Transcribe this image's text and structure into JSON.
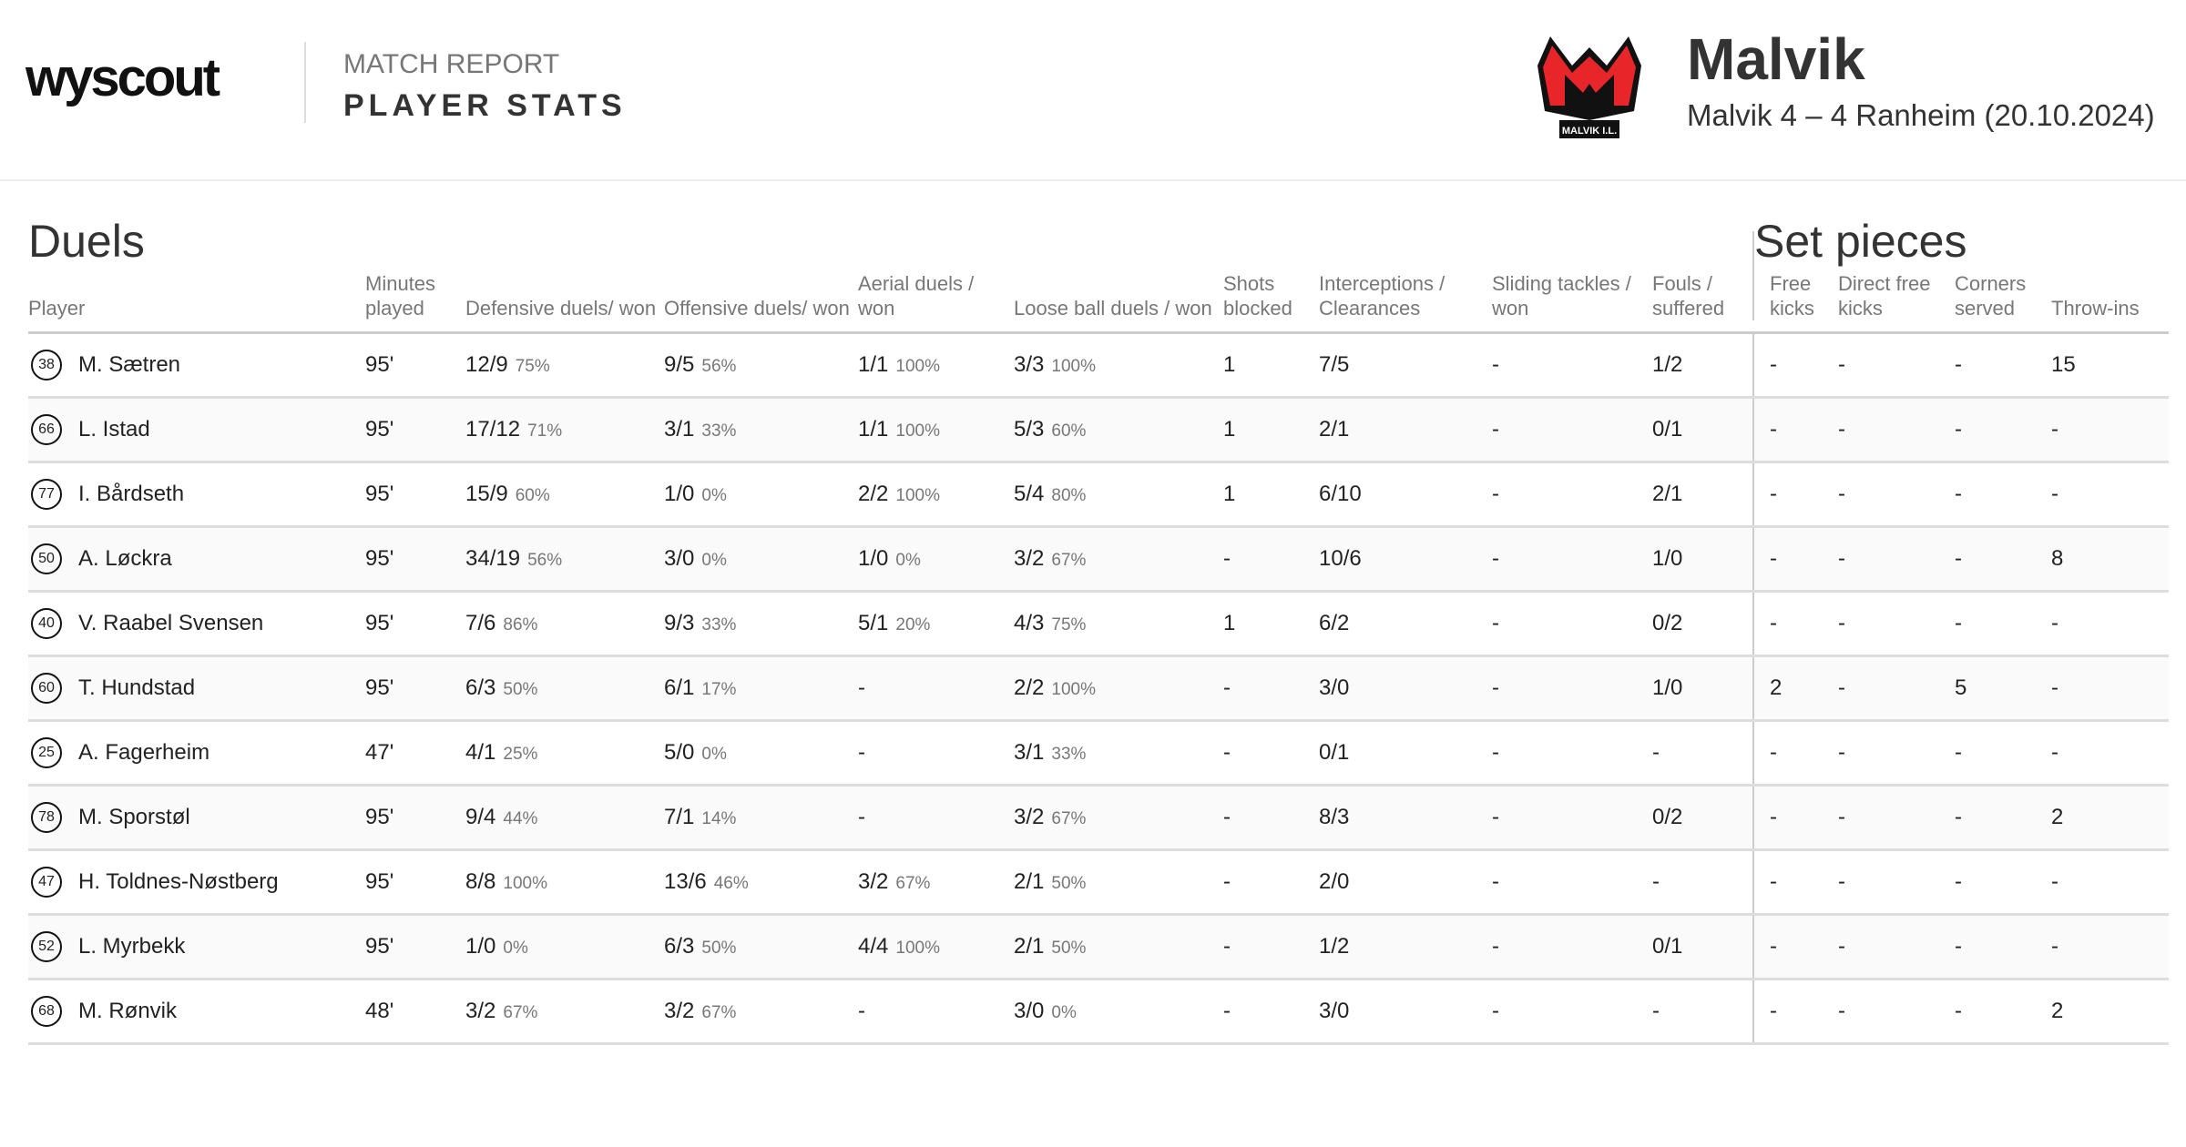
{
  "header": {
    "brand": "wyscout",
    "report_label": "MATCH REPORT",
    "report_title": "PLAYER STATS",
    "team": "Malvik",
    "match": "Malvik 4 – 4 Ranheim (20.10.2024)",
    "logo_text": "MALVIK I.L."
  },
  "sections": {
    "duels": "Duels",
    "set_pieces": "Set pieces"
  },
  "columns": [
    "Player",
    "Minutes played",
    "Defensive duels/ won",
    "Offensive duels/ won",
    "Aerial duels / won",
    "Loose ball duels / won",
    "Shots blocked",
    "Interceptions / Clearances",
    "Sliding tackles / won",
    "Fouls / suffered",
    "Free kicks",
    "Direct free kicks",
    "Corners served",
    "Throw-ins"
  ],
  "colors": {
    "accent": "#e8262a",
    "row_alt": "#fafafa"
  },
  "rows": [
    {
      "num": "38",
      "name": "M. Sætren",
      "min": "95'",
      "def": [
        "12/9",
        "75%"
      ],
      "off": [
        "9/5",
        "56%"
      ],
      "aer": [
        "1/1",
        "100%"
      ],
      "loose": [
        "3/3",
        "100%"
      ],
      "shots": "1",
      "int": "7/5",
      "slid": "-",
      "fouls": "1/2",
      "fk": "-",
      "dfk": "-",
      "corn": "-",
      "thr": "15"
    },
    {
      "num": "66",
      "name": "L. Istad",
      "min": "95'",
      "def": [
        "17/12",
        "71%"
      ],
      "off": [
        "3/1",
        "33%"
      ],
      "aer": [
        "1/1",
        "100%"
      ],
      "loose": [
        "5/3",
        "60%"
      ],
      "shots": "1",
      "int": "2/1",
      "slid": "-",
      "fouls": "0/1",
      "fk": "-",
      "dfk": "-",
      "corn": "-",
      "thr": "-"
    },
    {
      "num": "77",
      "name": "I. Bårdseth",
      "min": "95'",
      "def": [
        "15/9",
        "60%"
      ],
      "off": [
        "1/0",
        "0%"
      ],
      "aer": [
        "2/2",
        "100%"
      ],
      "loose": [
        "5/4",
        "80%"
      ],
      "shots": "1",
      "int": "6/10",
      "slid": "-",
      "fouls": "2/1",
      "fk": "-",
      "dfk": "-",
      "corn": "-",
      "thr": "-"
    },
    {
      "num": "50",
      "name": "A. Løckra",
      "min": "95'",
      "def": [
        "34/19",
        "56%"
      ],
      "off": [
        "3/0",
        "0%"
      ],
      "aer": [
        "1/0",
        "0%"
      ],
      "loose": [
        "3/2",
        "67%"
      ],
      "shots": "-",
      "int": "10/6",
      "slid": "-",
      "fouls": "1/0",
      "fk": "-",
      "dfk": "-",
      "corn": "-",
      "thr": "8"
    },
    {
      "num": "40",
      "name": "V. Raabel Svensen",
      "min": "95'",
      "def": [
        "7/6",
        "86%"
      ],
      "off": [
        "9/3",
        "33%"
      ],
      "aer": [
        "5/1",
        "20%"
      ],
      "loose": [
        "4/3",
        "75%"
      ],
      "shots": "1",
      "int": "6/2",
      "slid": "-",
      "fouls": "0/2",
      "fk": "-",
      "dfk": "-",
      "corn": "-",
      "thr": "-"
    },
    {
      "num": "60",
      "name": "T. Hundstad",
      "min": "95'",
      "def": [
        "6/3",
        "50%"
      ],
      "off": [
        "6/1",
        "17%"
      ],
      "aer": [
        "-",
        ""
      ],
      "loose": [
        "2/2",
        "100%"
      ],
      "shots": "-",
      "int": "3/0",
      "slid": "-",
      "fouls": "1/0",
      "fk": "2",
      "dfk": "-",
      "corn": "5",
      "thr": "-"
    },
    {
      "num": "25",
      "name": "A. Fagerheim",
      "min": "47'",
      "def": [
        "4/1",
        "25%"
      ],
      "off": [
        "5/0",
        "0%"
      ],
      "aer": [
        "-",
        ""
      ],
      "loose": [
        "3/1",
        "33%"
      ],
      "shots": "-",
      "int": "0/1",
      "slid": "-",
      "fouls": "-",
      "fk": "-",
      "dfk": "-",
      "corn": "-",
      "thr": "-"
    },
    {
      "num": "78",
      "name": "M. Sporstøl",
      "min": "95'",
      "def": [
        "9/4",
        "44%"
      ],
      "off": [
        "7/1",
        "14%"
      ],
      "aer": [
        "-",
        ""
      ],
      "loose": [
        "3/2",
        "67%"
      ],
      "shots": "-",
      "int": "8/3",
      "slid": "-",
      "fouls": "0/2",
      "fk": "-",
      "dfk": "-",
      "corn": "-",
      "thr": "2"
    },
    {
      "num": "47",
      "name": "H. Toldnes-Nøstberg",
      "min": "95'",
      "def": [
        "8/8",
        "100%"
      ],
      "off": [
        "13/6",
        "46%"
      ],
      "aer": [
        "3/2",
        "67%"
      ],
      "loose": [
        "2/1",
        "50%"
      ],
      "shots": "-",
      "int": "2/0",
      "slid": "-",
      "fouls": "-",
      "fk": "-",
      "dfk": "-",
      "corn": "-",
      "thr": "-"
    },
    {
      "num": "52",
      "name": "L. Myrbekk",
      "min": "95'",
      "def": [
        "1/0",
        "0%"
      ],
      "off": [
        "6/3",
        "50%"
      ],
      "aer": [
        "4/4",
        "100%"
      ],
      "loose": [
        "2/1",
        "50%"
      ],
      "shots": "-",
      "int": "1/2",
      "slid": "-",
      "fouls": "0/1",
      "fk": "-",
      "dfk": "-",
      "corn": "-",
      "thr": "-"
    },
    {
      "num": "68",
      "name": "M. Rønvik",
      "min": "48'",
      "def": [
        "3/2",
        "67%"
      ],
      "off": [
        "3/2",
        "67%"
      ],
      "aer": [
        "-",
        ""
      ],
      "loose": [
        "3/0",
        "0%"
      ],
      "shots": "-",
      "int": "3/0",
      "slid": "-",
      "fouls": "-",
      "fk": "-",
      "dfk": "-",
      "corn": "-",
      "thr": "2"
    }
  ]
}
